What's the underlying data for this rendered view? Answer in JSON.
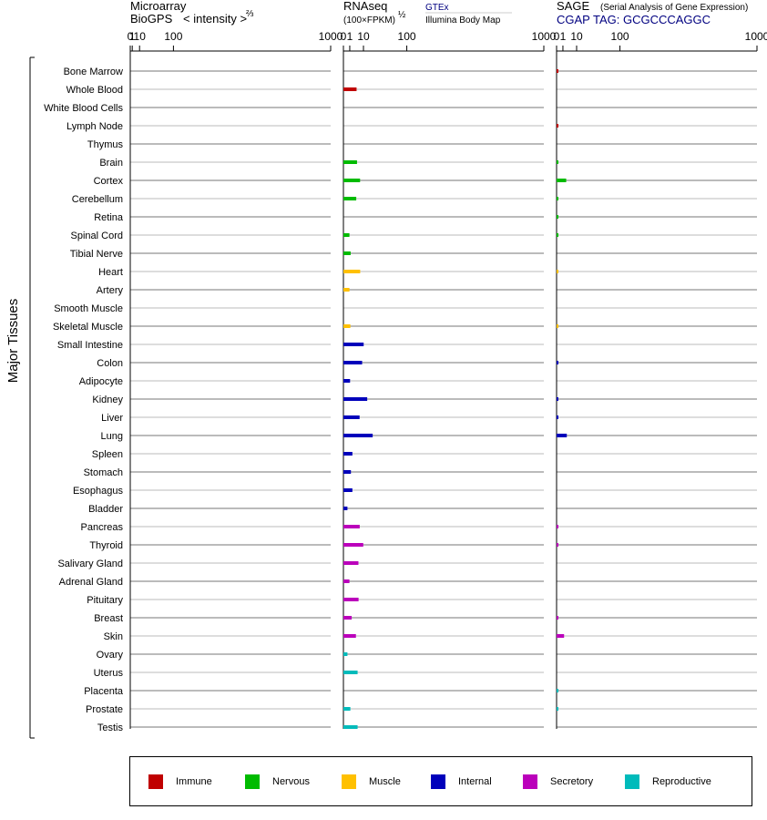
{
  "headers": {
    "microarray_line1": "Microarray",
    "microarray_line2": "BioGPS",
    "microarray_intensity": "< intensity >",
    "microarray_exp": "⅔",
    "rnaseq_line1": "RNAseq",
    "rnaseq_line2": "(100×FPKM)",
    "rnaseq_exp": "½",
    "rnaseq_src1": "GTEx",
    "rnaseq_src2": "Illumina Body Map",
    "sage_line1": "SAGE",
    "sage_desc": "(Serial Analysis of Gene Expression)",
    "sage_tag": "CGAP TAG: GCGCCCAGGC"
  },
  "y_group_label": "Major Tissues",
  "axis_ticks": [
    "0",
    "1",
    "10",
    "100",
    "1000"
  ],
  "colors": {
    "Immune": "#c00000",
    "Nervous": "#00bb00",
    "Muscle": "#ffc000",
    "Internal": "#0000bb",
    "Secretory": "#bb00bb",
    "Reproductive": "#00bbbb"
  },
  "legend": [
    "Immune",
    "Nervous",
    "Muscle",
    "Internal",
    "Secretory",
    "Reproductive"
  ],
  "chart_data": {
    "type": "bar",
    "orientation": "horizontal",
    "x_scale": "power 2/3 / 1/2 (0, 1, 10, 100, 1000)",
    "xlim": [
      0,
      1000
    ],
    "categories": [
      "Bone Marrow",
      "Whole Blood",
      "White Blood Cells",
      "Lymph Node",
      "Thymus",
      "Brain",
      "Cortex",
      "Cerebellum",
      "Retina",
      "Spinal Cord",
      "Tibial Nerve",
      "Heart",
      "Artery",
      "Smooth Muscle",
      "Skeletal Muscle",
      "Small Intestine",
      "Colon",
      "Adipocyte",
      "Kidney",
      "Liver",
      "Lung",
      "Spleen",
      "Stomach",
      "Esophagus",
      "Bladder",
      "Pancreas",
      "Thyroid",
      "Salivary Gland",
      "Adrenal Gland",
      "Pituitary",
      "Breast",
      "Skin",
      "Ovary",
      "Uterus",
      "Placenta",
      "Prostate",
      "Testis"
    ],
    "category_groups": [
      "Immune",
      "Immune",
      "Immune",
      "Immune",
      "Immune",
      "Nervous",
      "Nervous",
      "Nervous",
      "Nervous",
      "Nervous",
      "Nervous",
      "Muscle",
      "Muscle",
      "Muscle",
      "Muscle",
      "Internal",
      "Internal",
      "Internal",
      "Internal",
      "Internal",
      "Internal",
      "Internal",
      "Internal",
      "Internal",
      "Internal",
      "Secretory",
      "Secretory",
      "Secretory",
      "Secretory",
      "Secretory",
      "Secretory",
      "Secretory",
      "Reproductive",
      "Reproductive",
      "Reproductive",
      "Reproductive",
      "Reproductive"
    ],
    "series": [
      {
        "name": "Microarray",
        "values": [
          null,
          null,
          null,
          null,
          null,
          null,
          null,
          null,
          null,
          null,
          null,
          null,
          null,
          null,
          null,
          null,
          null,
          null,
          null,
          null,
          null,
          null,
          null,
          null,
          null,
          null,
          null,
          null,
          null,
          null,
          null,
          null,
          null,
          null,
          null,
          null,
          null
        ]
      },
      {
        "name": "RNAseq",
        "values": [
          null,
          4.3,
          null,
          null,
          null,
          4.6,
          6.9,
          4.1,
          null,
          0.9,
          1.3,
          7.0,
          0.9,
          null,
          1.2,
          10.2,
          8.7,
          1.1,
          14.1,
          6.5,
          21.3,
          2.0,
          1.4,
          2.0,
          0.4,
          6.6,
          9.8,
          5.6,
          0.9,
          5.7,
          1.7,
          3.9,
          0.4,
          5.0,
          null,
          1.2,
          5.0
        ]
      },
      {
        "name": "SAGE",
        "values": [
          0.0005,
          null,
          null,
          0.0005,
          null,
          0.0005,
          2.3,
          0.0005,
          0.0005,
          0.0005,
          null,
          0.0005,
          null,
          null,
          0.0005,
          null,
          0.0005,
          null,
          0.0005,
          0.0005,
          2.6,
          null,
          null,
          null,
          null,
          0.0005,
          0.0005,
          null,
          null,
          null,
          0.0005,
          1.4,
          null,
          null,
          0.0005,
          0.0005,
          null
        ]
      }
    ]
  }
}
